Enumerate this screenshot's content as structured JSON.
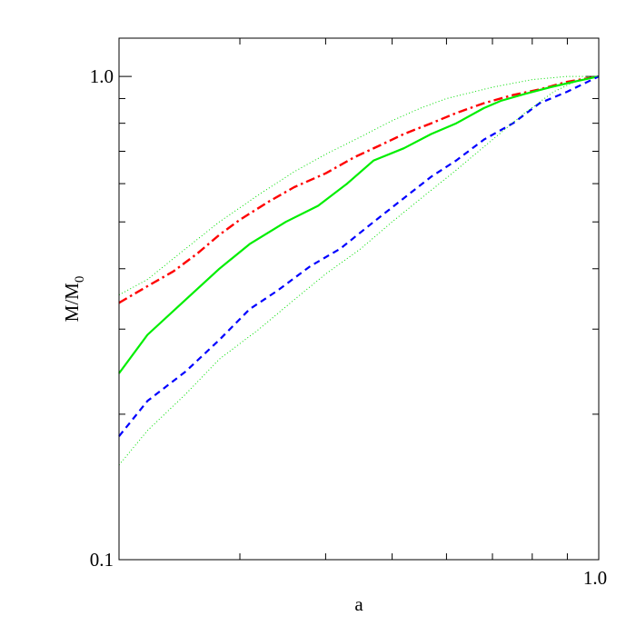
{
  "chart_data": {
    "type": "line",
    "xlabel": "a",
    "ylabel": "M/M",
    "ylabel_sub": "0",
    "xscale": "log",
    "yscale": "log",
    "xlim": [
      0.2,
      1.0
    ],
    "ylim": [
      0.1,
      1.2
    ],
    "x_tick_labels": [
      {
        "value": 1.0,
        "label": "1.0"
      }
    ],
    "y_tick_labels": [
      {
        "value": 0.1,
        "label": "0.1"
      },
      {
        "value": 1.0,
        "label": "1.0"
      }
    ],
    "x_minor_ticks": [
      0.3,
      0.4,
      0.5,
      0.6,
      0.7,
      0.8,
      0.9
    ],
    "y_minor_ticks": [
      0.2,
      0.3,
      0.4,
      0.5,
      0.6,
      0.7,
      0.8,
      0.9
    ],
    "grid": false,
    "series": [
      {
        "style": "dotted",
        "color": "#00dd00",
        "x": [
          0.2,
          0.22,
          0.25,
          0.28,
          0.32,
          0.36,
          0.4,
          0.45,
          0.5,
          0.55,
          0.6,
          0.7,
          0.8,
          0.9,
          1.0
        ],
        "y": [
          0.353,
          0.38,
          0.44,
          0.5,
          0.57,
          0.635,
          0.69,
          0.75,
          0.81,
          0.86,
          0.9,
          0.95,
          0.985,
          1.0,
          1.0
        ]
      },
      {
        "style": "dash-dot",
        "color": "#ff0000",
        "x": [
          0.2,
          0.22,
          0.24,
          0.26,
          0.28,
          0.3,
          0.33,
          0.36,
          0.4,
          0.44,
          0.48,
          0.52,
          0.57,
          0.62,
          0.68,
          0.75,
          0.82,
          0.9,
          1.0
        ],
        "y": [
          0.34,
          0.368,
          0.395,
          0.43,
          0.47,
          0.505,
          0.55,
          0.59,
          0.63,
          0.68,
          0.72,
          0.76,
          0.8,
          0.84,
          0.88,
          0.915,
          0.94,
          0.975,
          1.0
        ]
      },
      {
        "style": "solid",
        "color": "#00ee00",
        "x": [
          0.2,
          0.22,
          0.25,
          0.28,
          0.31,
          0.35,
          0.39,
          0.43,
          0.47,
          0.52,
          0.57,
          0.62,
          0.68,
          0.72,
          0.78,
          0.85,
          0.92,
          1.0
        ],
        "y": [
          0.243,
          0.292,
          0.345,
          0.4,
          0.45,
          0.5,
          0.54,
          0.6,
          0.67,
          0.71,
          0.76,
          0.8,
          0.86,
          0.89,
          0.92,
          0.95,
          0.975,
          1.0
        ]
      },
      {
        "style": "dashed",
        "color": "#0000ff",
        "x": [
          0.2,
          0.22,
          0.25,
          0.28,
          0.31,
          0.34,
          0.38,
          0.42,
          0.47,
          0.52,
          0.57,
          0.62,
          0.68,
          0.75,
          0.82,
          0.9,
          1.0
        ],
        "y": [
          0.18,
          0.213,
          0.245,
          0.285,
          0.33,
          0.36,
          0.405,
          0.44,
          0.5,
          0.56,
          0.62,
          0.67,
          0.74,
          0.8,
          0.88,
          0.93,
          1.0
        ]
      },
      {
        "style": "dotted",
        "color": "#00dd00",
        "x": [
          0.2,
          0.22,
          0.25,
          0.28,
          0.32,
          0.36,
          0.4,
          0.45,
          0.5,
          0.56,
          0.62,
          0.7,
          0.78,
          0.86,
          0.93,
          1.0
        ],
        "y": [
          0.157,
          0.185,
          0.22,
          0.26,
          0.3,
          0.345,
          0.39,
          0.44,
          0.5,
          0.57,
          0.64,
          0.74,
          0.84,
          0.93,
          0.98,
          1.0
        ]
      }
    ]
  }
}
